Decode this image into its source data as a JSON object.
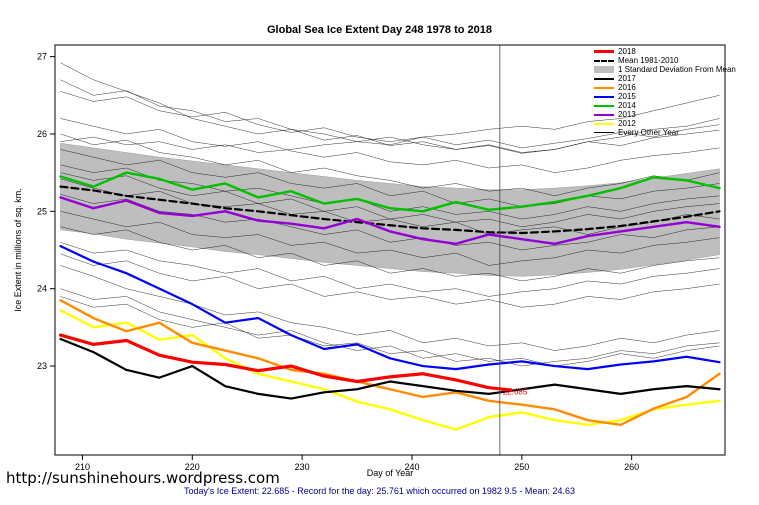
{
  "page": {
    "footer_note": "Today's Ice Extent: 22.685  - Record for the day: 25.761 which occurred on 1982 9.5  - Mean: 24.63",
    "url": "http://sunshinehours.wordpress.com"
  },
  "chart_data": {
    "type": "line",
    "title": "Global Sea Ice Extent Day 248 1978 to 2018",
    "xlabel": "Day of Year",
    "ylabel": "Ice Extent in millions of sq. km.",
    "xlim": [
      207.5,
      268.5
    ],
    "ylim": [
      21.85,
      27.15
    ],
    "xticks": [
      210,
      220,
      230,
      240,
      250,
      260
    ],
    "yticks": [
      23,
      24,
      25,
      26,
      27
    ],
    "grid": false,
    "legend_position": "top-right",
    "marker": {
      "x": 248,
      "label": "22.685",
      "label_y": 22.63,
      "line_color": "#444444"
    },
    "x_grid": [
      208,
      211,
      214,
      217,
      220,
      223,
      226,
      229,
      232,
      235,
      238,
      241,
      244,
      247,
      250,
      253,
      256,
      259,
      262,
      265,
      268
    ],
    "band": {
      "name": "1 Standard Deviation From Mean",
      "color": "#BEBEBE",
      "x": [
        208,
        211,
        214,
        217,
        220,
        223,
        226,
        229,
        232,
        235,
        238,
        241,
        244,
        247,
        250,
        253,
        256,
        259,
        262,
        265,
        268
      ],
      "upper": [
        25.88,
        25.82,
        25.76,
        25.7,
        25.65,
        25.6,
        25.55,
        25.5,
        25.45,
        25.4,
        25.36,
        25.32,
        25.3,
        25.28,
        25.28,
        25.3,
        25.33,
        25.37,
        25.43,
        25.49,
        25.55
      ],
      "lower": [
        24.76,
        24.71,
        24.64,
        24.59,
        24.54,
        24.48,
        24.44,
        24.39,
        24.34,
        24.3,
        24.26,
        24.22,
        24.2,
        24.17,
        24.16,
        24.18,
        24.21,
        24.25,
        24.31,
        24.37,
        24.44
      ]
    },
    "series": [
      {
        "name": "Mean 1981-2010",
        "color": "#000000",
        "width": 2.2,
        "dash": true,
        "y": [
          25.32,
          25.27,
          25.2,
          25.15,
          25.1,
          25.04,
          25.0,
          24.95,
          24.9,
          24.86,
          24.82,
          24.78,
          24.76,
          24.73,
          24.72,
          24.74,
          24.77,
          24.81,
          24.87,
          24.93,
          25.0
        ]
      },
      {
        "name": "2013",
        "color": "#9400D3",
        "width": 2.4,
        "y": [
          25.18,
          25.04,
          25.14,
          24.98,
          24.94,
          25.0,
          24.88,
          24.84,
          24.78,
          24.9,
          24.74,
          24.64,
          24.58,
          24.7,
          24.64,
          24.58,
          24.68,
          24.74,
          24.8,
          24.86,
          24.8
        ]
      },
      {
        "name": "2014",
        "color": "#00C000",
        "width": 2.4,
        "y": [
          25.45,
          25.32,
          25.5,
          25.42,
          25.28,
          25.36,
          25.18,
          25.26,
          25.1,
          25.16,
          25.04,
          25.0,
          25.12,
          25.02,
          25.06,
          25.12,
          25.2,
          25.3,
          25.44,
          25.4,
          25.3
        ]
      },
      {
        "name": "2015",
        "color": "#0000FF",
        "width": 2.2,
        "y": [
          24.55,
          24.35,
          24.2,
          24.0,
          23.8,
          23.56,
          23.62,
          23.4,
          23.22,
          23.28,
          23.1,
          23.0,
          22.96,
          23.02,
          23.06,
          23.0,
          22.96,
          23.02,
          23.06,
          23.12,
          23.05
        ]
      },
      {
        "name": "2012",
        "color": "#FFFF00",
        "width": 2.4,
        "y": [
          23.72,
          23.5,
          23.56,
          23.34,
          23.4,
          23.1,
          22.9,
          22.8,
          22.7,
          22.54,
          22.44,
          22.3,
          22.18,
          22.34,
          22.4,
          22.3,
          22.24,
          22.3,
          22.44,
          22.5,
          22.55
        ]
      },
      {
        "name": "2016",
        "color": "#FF8C00",
        "width": 2.4,
        "y": [
          23.85,
          23.62,
          23.45,
          23.56,
          23.3,
          23.2,
          23.1,
          22.95,
          22.9,
          22.8,
          22.7,
          22.6,
          22.66,
          22.55,
          22.5,
          22.44,
          22.3,
          22.24,
          22.45,
          22.6,
          22.9
        ]
      },
      {
        "name": "2017",
        "color": "#000000",
        "width": 2.2,
        "y": [
          23.35,
          23.18,
          22.95,
          22.85,
          23.0,
          22.74,
          22.64,
          22.58,
          22.66,
          22.7,
          22.8,
          22.74,
          22.68,
          22.64,
          22.7,
          22.76,
          22.7,
          22.64,
          22.7,
          22.74,
          22.7
        ]
      },
      {
        "name": "2018",
        "color": "#FF0000",
        "width": 3.2,
        "x": [
          208,
          211,
          214,
          217,
          220,
          223,
          226,
          229,
          232,
          235,
          238,
          241,
          244,
          247,
          249
        ],
        "y": [
          23.4,
          23.28,
          23.33,
          23.14,
          23.05,
          23.02,
          22.94,
          23.0,
          22.87,
          22.8,
          22.86,
          22.9,
          22.82,
          22.72,
          22.69
        ]
      }
    ],
    "background_series": {
      "name": "Every Other Year",
      "color": "#000000",
      "width": 0.5,
      "lines": [
        [
          26.92,
          26.7,
          26.55,
          26.4,
          26.2,
          26.1,
          26.0,
          26.06,
          25.92,
          25.98,
          25.85,
          25.9,
          25.8,
          25.85,
          25.75,
          25.8,
          25.9,
          25.85,
          25.95,
          26.0,
          26.05
        ],
        [
          26.55,
          26.42,
          26.48,
          26.3,
          26.22,
          26.28,
          26.12,
          26.02,
          26.08,
          25.96,
          25.9,
          25.96,
          25.86,
          25.92,
          25.82,
          25.88,
          25.94,
          26.02,
          25.96,
          26.06,
          26.12
        ],
        [
          26.2,
          26.1,
          26.0,
          26.06,
          25.9,
          25.84,
          25.9,
          25.78,
          25.7,
          25.76,
          25.64,
          25.6,
          25.66,
          25.56,
          25.6,
          25.5,
          25.56,
          25.66,
          25.72,
          25.76,
          25.82
        ],
        [
          26.0,
          25.86,
          25.92,
          25.76,
          25.7,
          25.6,
          25.66,
          25.5,
          25.56,
          25.46,
          25.4,
          25.3,
          25.36,
          25.26,
          25.3,
          25.2,
          25.3,
          25.36,
          25.46,
          25.4,
          25.5
        ],
        [
          25.8,
          25.7,
          25.6,
          25.66,
          25.5,
          25.44,
          25.5,
          25.36,
          25.3,
          25.36,
          25.2,
          25.26,
          25.1,
          25.16,
          25.06,
          25.1,
          25.2,
          25.16,
          25.26,
          25.3,
          25.36
        ],
        [
          25.6,
          25.5,
          25.56,
          25.4,
          25.36,
          25.26,
          25.3,
          25.2,
          25.1,
          25.16,
          25.0,
          25.06,
          24.96,
          25.0,
          24.9,
          24.96,
          25.06,
          25.0,
          25.1,
          25.16,
          25.2
        ],
        [
          25.42,
          25.3,
          25.2,
          25.26,
          25.1,
          25.06,
          25.1,
          24.96,
          25.0,
          24.86,
          24.9,
          24.8,
          24.86,
          24.7,
          24.76,
          24.8,
          24.7,
          24.8,
          24.86,
          24.96,
          24.9
        ],
        [
          25.22,
          25.1,
          25.16,
          25.0,
          24.96,
          24.86,
          24.9,
          24.8,
          24.7,
          24.76,
          24.6,
          24.66,
          24.56,
          24.6,
          24.5,
          24.56,
          24.6,
          24.7,
          24.66,
          24.76,
          24.8
        ],
        [
          25.0,
          24.9,
          24.8,
          24.86,
          24.7,
          24.66,
          24.7,
          24.56,
          24.6,
          24.46,
          24.5,
          24.4,
          24.46,
          24.3,
          24.36,
          24.4,
          24.5,
          24.46,
          24.56,
          24.6,
          24.66
        ],
        [
          24.8,
          24.7,
          24.76,
          24.6,
          24.5,
          24.56,
          24.4,
          24.46,
          24.3,
          24.36,
          24.2,
          24.26,
          24.16,
          24.2,
          24.1,
          24.16,
          24.26,
          24.2,
          24.3,
          24.36,
          24.4
        ],
        [
          24.6,
          24.46,
          24.5,
          24.36,
          24.3,
          24.2,
          24.26,
          24.1,
          24.16,
          24.0,
          24.06,
          23.96,
          24.0,
          23.9,
          23.96,
          24.0,
          24.1,
          24.06,
          24.16,
          24.2,
          24.26
        ],
        [
          24.45,
          24.3,
          24.36,
          24.2,
          24.1,
          24.16,
          24.0,
          24.06,
          23.9,
          23.96,
          23.86,
          23.9,
          23.8,
          23.86,
          23.76,
          23.8,
          23.9,
          23.86,
          23.96,
          24.0,
          24.06
        ],
        [
          24.3,
          24.16,
          24.0,
          23.9,
          23.8,
          23.66,
          23.7,
          23.56,
          23.5,
          23.4,
          23.46,
          23.3,
          23.36,
          23.26,
          23.3,
          23.2,
          23.26,
          23.36,
          23.3,
          23.4,
          23.46
        ],
        [
          24.0,
          23.86,
          23.9,
          23.7,
          23.6,
          23.5,
          23.4,
          23.46,
          23.3,
          23.2,
          23.26,
          23.1,
          23.16,
          23.06,
          23.1,
          23.0,
          23.06,
          23.16,
          23.1,
          23.2,
          23.26
        ],
        [
          23.9,
          23.76,
          23.8,
          23.6,
          23.5,
          23.56,
          23.36,
          23.4,
          23.26,
          23.3,
          23.16,
          23.2,
          23.06,
          23.1,
          23.0,
          23.06,
          23.1,
          23.2,
          23.16,
          23.26,
          23.3
        ],
        [
          25.9,
          25.96,
          25.86,
          25.9,
          25.8,
          25.86,
          25.76,
          25.8,
          25.86,
          25.9,
          25.86,
          25.96,
          26.0,
          26.06,
          26.1,
          26.06,
          26.16,
          26.2,
          26.3,
          26.4,
          26.5
        ],
        [
          26.7,
          26.5,
          26.56,
          26.36,
          26.3,
          26.16,
          26.2,
          26.06,
          26.0,
          25.9,
          25.96,
          25.86,
          25.8,
          25.86,
          25.76,
          25.8,
          25.9,
          25.96,
          26.06,
          26.1,
          26.2
        ],
        [
          25.5,
          25.4,
          25.46,
          25.3,
          25.2,
          25.26,
          25.1,
          25.16,
          25.0,
          25.06,
          24.9,
          24.96,
          24.86,
          24.9,
          24.8,
          24.86,
          24.96,
          24.9,
          25.0,
          25.06,
          25.1
        ]
      ]
    },
    "legend": [
      {
        "label": "2018",
        "swatch": "line",
        "color": "#FF0000",
        "thickness": 3
      },
      {
        "label": "Mean 1981-2010",
        "swatch": "dash",
        "color": "#000000",
        "thickness": 2
      },
      {
        "label": "1 Standard Deviation From Mean",
        "swatch": "box",
        "color": "#BEBEBE"
      },
      {
        "label": "2017",
        "swatch": "line",
        "color": "#000000",
        "thickness": 2
      },
      {
        "label": "2016",
        "swatch": "line",
        "color": "#FF8C00",
        "thickness": 2
      },
      {
        "label": "2015",
        "swatch": "line",
        "color": "#0000FF",
        "thickness": 2
      },
      {
        "label": "2014",
        "swatch": "line",
        "color": "#00C000",
        "thickness": 2
      },
      {
        "label": "2013",
        "swatch": "line",
        "color": "#9400D3",
        "thickness": 2
      },
      {
        "label": "2012",
        "swatch": "line",
        "color": "#FFFF00",
        "thickness": 2
      },
      {
        "label": "Every Other Year",
        "swatch": "line",
        "color": "#000000",
        "thickness": 1
      }
    ]
  }
}
